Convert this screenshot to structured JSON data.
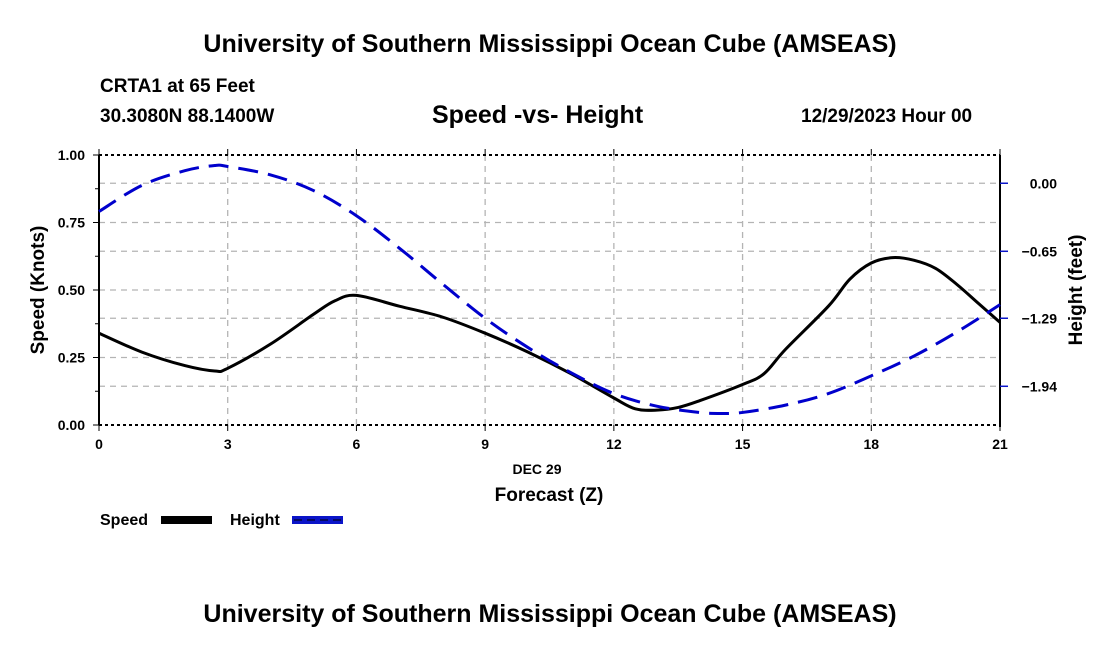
{
  "header": {
    "title": "University of Southern Mississippi Ocean Cube (AMSEAS)",
    "station": "CRTA1 at 65 Feet",
    "coords": "30.3080N  88.1400W",
    "datetime": "12/29/2023 Hour 00",
    "footer_title": "University of Southern Mississippi Ocean Cube (AMSEAS)"
  },
  "chart_data": {
    "type": "line",
    "title": "Speed -vs- Height",
    "xlabel": "Forecast (Z)",
    "xdate_label": "DEC 29",
    "ylabel": "Speed (Knots)",
    "y2label": "Height (feet)",
    "xlim": [
      0,
      21
    ],
    "ylim": [
      0,
      1.0
    ],
    "y2lim": [
      -2.31,
      0.27
    ],
    "xticks": [
      0,
      3,
      6,
      9,
      12,
      15,
      18,
      21
    ],
    "xtick_labels": [
      "0",
      "3",
      "6",
      "9",
      "12",
      "15",
      "18",
      "21"
    ],
    "yticks": [
      0,
      0.25,
      0.5,
      0.75,
      1.0
    ],
    "ytick_labels": [
      "0.00",
      "0.25",
      "0.50",
      "0.75",
      "1.00"
    ],
    "y2ticks": [
      0.0,
      -0.65,
      -1.29,
      -1.94
    ],
    "y2tick_labels": [
      "0.00",
      "−0.65",
      "−1.29",
      "−1.94"
    ],
    "grid": true,
    "legend_position": "bottom-left",
    "series": [
      {
        "name": "Speed",
        "axis": "left",
        "color": "#000000",
        "style": "solid",
        "x": [
          0,
          1,
          2,
          2.7,
          3,
          4,
          5,
          5.5,
          6,
          7,
          8,
          9,
          10,
          11,
          12,
          12.5,
          13,
          13.5,
          14,
          15,
          15.5,
          16,
          17,
          17.5,
          18,
          18.5,
          19,
          19.5,
          20,
          20.5,
          21
        ],
        "values": [
          0.34,
          0.27,
          0.22,
          0.2,
          0.21,
          0.3,
          0.41,
          0.46,
          0.48,
          0.44,
          0.4,
          0.34,
          0.27,
          0.19,
          0.1,
          0.06,
          0.055,
          0.065,
          0.09,
          0.15,
          0.19,
          0.28,
          0.44,
          0.54,
          0.6,
          0.62,
          0.61,
          0.58,
          0.52,
          0.45,
          0.38
        ]
      },
      {
        "name": "Height",
        "axis": "right",
        "color": "#0000cc",
        "style": "dashed",
        "x": [
          0,
          1,
          2,
          2.7,
          3,
          4,
          5,
          6,
          7,
          8,
          9,
          10,
          11,
          12,
          13,
          14,
          14.5,
          15,
          16,
          17,
          18,
          19,
          20,
          21
        ],
        "values": [
          -0.27,
          -0.02,
          0.12,
          0.17,
          0.16,
          0.08,
          -0.07,
          -0.31,
          -0.62,
          -0.96,
          -1.29,
          -1.57,
          -1.81,
          -2.01,
          -2.13,
          -2.19,
          -2.2,
          -2.19,
          -2.12,
          -2.01,
          -1.84,
          -1.65,
          -1.42,
          -1.16
        ]
      }
    ]
  }
}
